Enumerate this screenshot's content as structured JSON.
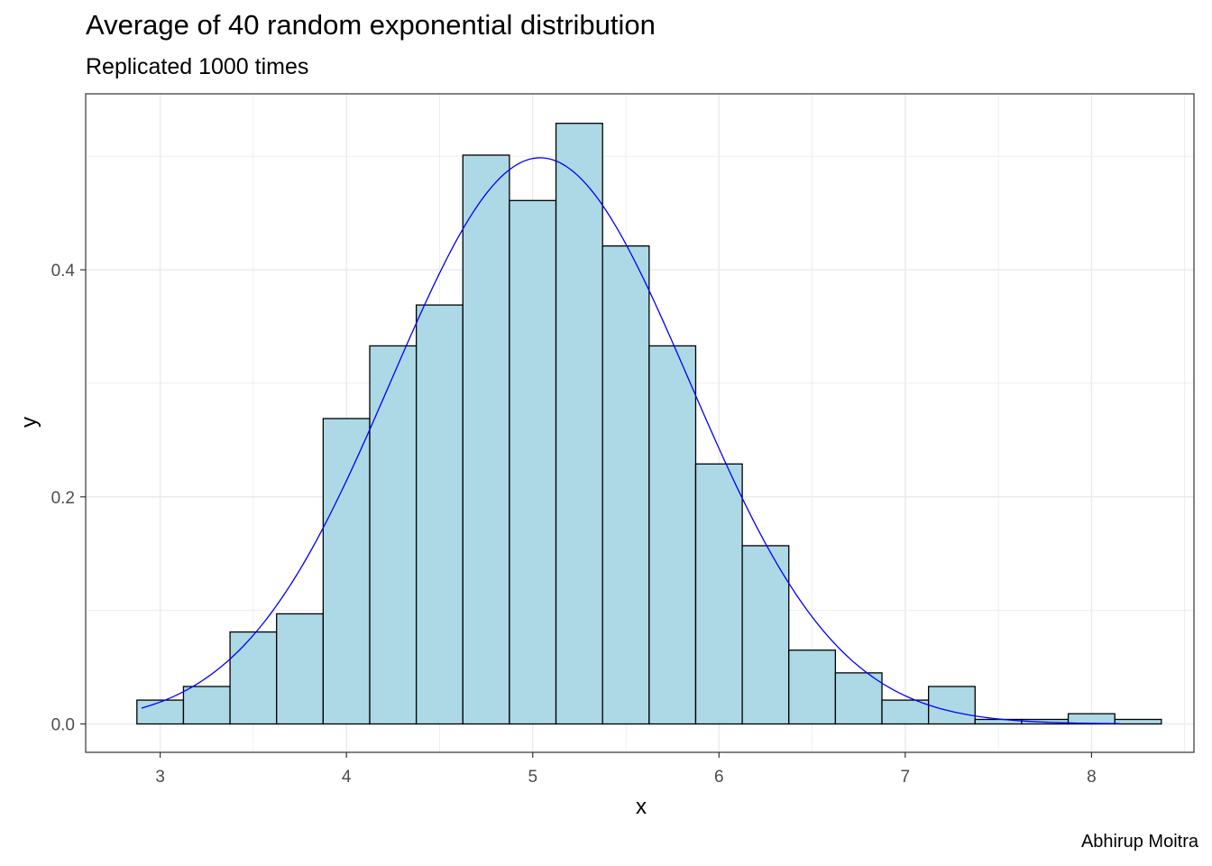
{
  "chart_data": {
    "type": "bar",
    "title": "Average of 40 random exponential distribution",
    "subtitle": "Replicated 1000 times",
    "caption": "Abhirup Moitra",
    "xlabel": "x",
    "ylabel": "y",
    "xlim": [
      2.6,
      8.55
    ],
    "ylim": [
      -0.025,
      0.555
    ],
    "x_ticks": [
      3,
      4,
      5,
      6,
      7,
      8
    ],
    "x_tick_labels": [
      "3",
      "4",
      "5",
      "6",
      "7",
      "8"
    ],
    "y_ticks": [
      0.0,
      0.2,
      0.4
    ],
    "y_tick_labels": [
      "0.0",
      "0.2",
      "0.4"
    ],
    "grid": true,
    "bin_width": 0.25,
    "bins": [
      {
        "x": 3.0,
        "density": 0.021
      },
      {
        "x": 3.25,
        "density": 0.033
      },
      {
        "x": 3.5,
        "density": 0.081
      },
      {
        "x": 3.75,
        "density": 0.097
      },
      {
        "x": 4.0,
        "density": 0.269
      },
      {
        "x": 4.25,
        "density": 0.333
      },
      {
        "x": 4.5,
        "density": 0.369
      },
      {
        "x": 4.75,
        "density": 0.501
      },
      {
        "x": 5.0,
        "density": 0.461
      },
      {
        "x": 5.25,
        "density": 0.529
      },
      {
        "x": 5.5,
        "density": 0.421
      },
      {
        "x": 5.75,
        "density": 0.333
      },
      {
        "x": 6.0,
        "density": 0.229
      },
      {
        "x": 6.25,
        "density": 0.157
      },
      {
        "x": 6.5,
        "density": 0.065
      },
      {
        "x": 6.75,
        "density": 0.045
      },
      {
        "x": 7.0,
        "density": 0.021
      },
      {
        "x": 7.25,
        "density": 0.033
      },
      {
        "x": 7.5,
        "density": 0.004
      },
      {
        "x": 7.75,
        "density": 0.004
      },
      {
        "x": 8.0,
        "density": 0.009
      },
      {
        "x": 8.25,
        "density": 0.004
      }
    ],
    "curve": {
      "type": "normal",
      "mean": 5.04,
      "sd": 0.8,
      "x_range": [
        2.9,
        8.15
      ]
    },
    "colors": {
      "bar_fill": "#add8e6",
      "bar_stroke": "#000000",
      "curve": "#0000ff",
      "grid": "#ebebeb",
      "panel_border": "#333333"
    }
  }
}
